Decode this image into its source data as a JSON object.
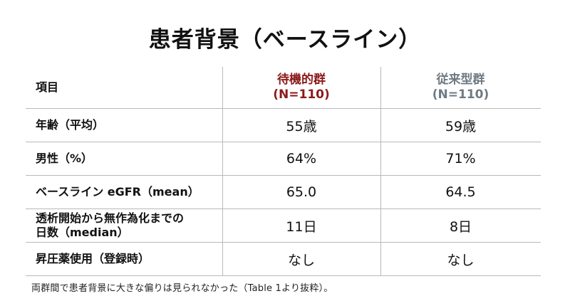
{
  "title": "患者背景（ベースライン）",
  "table": {
    "header": {
      "item_label": "項目",
      "group1_name": "待機的群",
      "group1_n": "(N=110)",
      "group2_name": "従来型群",
      "group2_n": "(N=110)"
    },
    "rows": [
      {
        "label_line1": "年齢（平均）",
        "label_line2": "",
        "group1": "55歳",
        "group2": "59歳"
      },
      {
        "label_line1": "男性（%）",
        "label_line2": "",
        "group1": "64%",
        "group2": "71%"
      },
      {
        "label_line1": "ベースライン eGFR（mean）",
        "label_line2": "",
        "group1": "65.0",
        "group2": "64.5"
      },
      {
        "label_line1": "透析開始から無作為化までの",
        "label_line2": "日数（median）",
        "group1": "11日",
        "group2": "8日"
      },
      {
        "label_line1": "昇圧薬使用（登録時）",
        "label_line2": "",
        "group1": "なし",
        "group2": "なし"
      }
    ]
  },
  "footnote": "両群間で患者背景に大きな偏りは見られなかった（Table 1より抜粋）。",
  "colors": {
    "group1": "#8b1a1a",
    "group2": "#6f7a83",
    "rule": "#b9b9b9"
  }
}
